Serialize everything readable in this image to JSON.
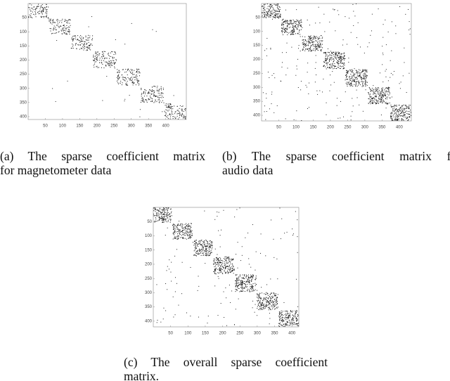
{
  "panels": [
    {
      "xlim": [
        0,
        460
      ],
      "ylim": [
        0,
        410
      ],
      "xticks": [
        50,
        100,
        150,
        200,
        250,
        300,
        350,
        400
      ],
      "yticks": [
        50,
        100,
        150,
        200,
        250,
        300,
        350,
        400
      ],
      "caption": [
        "(a) The sparse coefficient matrix",
        "for magnetometer data"
      ]
    },
    {
      "xlim": [
        0,
        435
      ],
      "ylim": [
        0,
        420
      ],
      "xticks": [
        50,
        100,
        150,
        200,
        250,
        300,
        350,
        400
      ],
      "yticks": [
        50,
        100,
        150,
        200,
        250,
        300,
        350,
        400
      ],
      "caption": [
        "(b) The sparse coefficient matrix for",
        "audio data"
      ]
    },
    {
      "xlim": [
        0,
        420
      ],
      "ylim": [
        0,
        420
      ],
      "xticks": [
        50,
        100,
        150,
        200,
        250,
        300,
        350,
        400
      ],
      "yticks": [
        50,
        100,
        150,
        200,
        250,
        300,
        350,
        400
      ],
      "caption": [
        "(c) The overall sparse coefficient",
        "matrix."
      ]
    }
  ]
}
